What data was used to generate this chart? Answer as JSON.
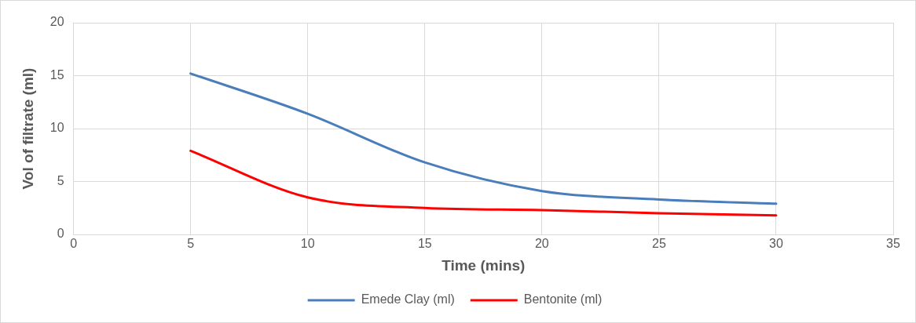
{
  "chart_data": {
    "type": "line",
    "xlabel": "Time (mins)",
    "ylabel": "Vol of filtrate (ml)",
    "x": [
      5,
      10,
      15,
      20,
      25,
      30
    ],
    "series": [
      {
        "name": "Emede Clay (ml)",
        "color": "#4a7ebb",
        "values": [
          15.2,
          11.4,
          6.8,
          4.1,
          3.3,
          2.9
        ]
      },
      {
        "name": "Bentonite (ml)",
        "color": "#ff0000",
        "values": [
          7.9,
          3.5,
          2.5,
          2.3,
          2.0,
          1.8
        ]
      }
    ],
    "xlim": [
      0,
      35
    ],
    "xticks": [
      0,
      5,
      10,
      15,
      20,
      25,
      30,
      35
    ],
    "ylim": [
      0,
      20
    ],
    "yticks": [
      0,
      5,
      10,
      15,
      20
    ],
    "grid": true,
    "legend": "bottom",
    "marker": "none",
    "line_style": "solid"
  }
}
